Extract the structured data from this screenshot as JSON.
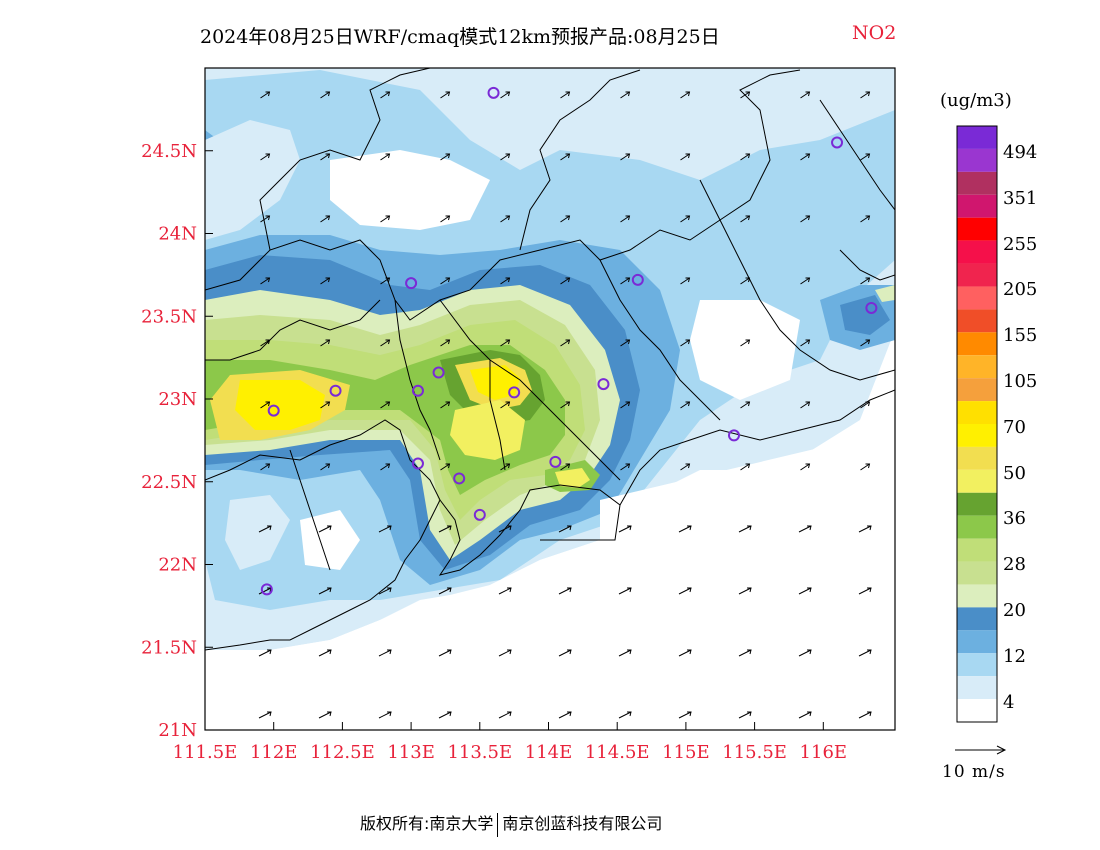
{
  "title": {
    "main": "2024年08月25日WRF/cmaq模式12km预报产品:08月25日",
    "pollutant": "NO2"
  },
  "axes": {
    "lat_labels": [
      "24.5N",
      "24N",
      "23.5N",
      "23N",
      "22.5N",
      "22N",
      "21.5N",
      "21N"
    ],
    "lon_labels": [
      "111.5E",
      "112E",
      "112.5E",
      "113E",
      "113.5E",
      "114E",
      "114.5E",
      "115E",
      "115.5E",
      "116E"
    ],
    "label_color": "#e8223a",
    "xlim": [
      111.5,
      116.5
    ],
    "ylim": [
      21,
      25
    ]
  },
  "legend": {
    "unit": "(ug/m3)",
    "labels": [
      "494",
      "351",
      "255",
      "205",
      "155",
      "105",
      "70",
      "50",
      "36",
      "28",
      "20",
      "12",
      "4"
    ],
    "colors": [
      "#7a2ad6",
      "#9a36d0",
      "#b03060",
      "#d0166e",
      "#ff0000",
      "#f5104a",
      "#f0244e",
      "#ff6060",
      "#f04e28",
      "#ff8a00",
      "#ffb428",
      "#f5a03c",
      "#ffe000",
      "#fff000",
      "#f2de50",
      "#f2f060",
      "#66a330",
      "#8cc84a",
      "#c0de78",
      "#c8e090",
      "#dceebe",
      "#4a8ec8",
      "#6cb0e0",
      "#a8d8f2",
      "#d8ecf8",
      "#ffffff"
    ]
  },
  "wind_reference": "10 m/s",
  "footer": {
    "left": "版权所有:南京大学",
    "right": "南京创蓝科技有限公司"
  },
  "stations": [
    {
      "lon": 113.6,
      "lat": 24.85
    },
    {
      "lon": 116.1,
      "lat": 24.55
    },
    {
      "lon": 113.0,
      "lat": 23.7
    },
    {
      "lon": 114.65,
      "lat": 23.72
    },
    {
      "lon": 116.35,
      "lat": 23.55
    },
    {
      "lon": 112.45,
      "lat": 23.05
    },
    {
      "lon": 113.05,
      "lat": 23.05
    },
    {
      "lon": 113.2,
      "lat": 23.16
    },
    {
      "lon": 113.75,
      "lat": 23.04
    },
    {
      "lon": 114.4,
      "lat": 23.09
    },
    {
      "lon": 112.0,
      "lat": 22.93
    },
    {
      "lon": 113.05,
      "lat": 22.61
    },
    {
      "lon": 113.35,
      "lat": 22.52
    },
    {
      "lon": 114.05,
      "lat": 22.62
    },
    {
      "lon": 113.5,
      "lat": 22.3
    },
    {
      "lon": 111.95,
      "lat": 21.85
    },
    {
      "lon": 115.35,
      "lat": 22.78
    }
  ]
}
